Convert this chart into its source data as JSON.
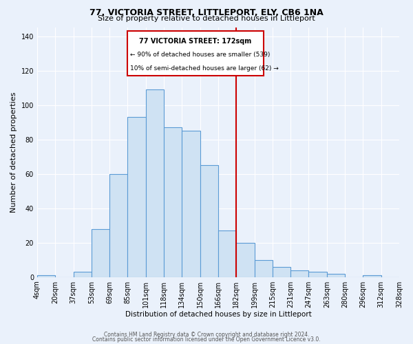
{
  "title": "77, VICTORIA STREET, LITTLEPORT, ELY, CB6 1NA",
  "subtitle": "Size of property relative to detached houses in Littleport",
  "xlabel": "Distribution of detached houses by size in Littleport",
  "ylabel": "Number of detached properties",
  "bin_labels": [
    "4sqm",
    "20sqm",
    "37sqm",
    "53sqm",
    "69sqm",
    "85sqm",
    "101sqm",
    "118sqm",
    "134sqm",
    "150sqm",
    "166sqm",
    "182sqm",
    "199sqm",
    "215sqm",
    "231sqm",
    "247sqm",
    "263sqm",
    "280sqm",
    "296sqm",
    "312sqm",
    "328sqm"
  ],
  "bar_heights": [
    1,
    0,
    3,
    28,
    60,
    93,
    109,
    87,
    85,
    65,
    27,
    20,
    10,
    6,
    4,
    3,
    2,
    0,
    1,
    0
  ],
  "bar_color": "#cfe2f3",
  "bar_edge_color": "#5b9bd5",
  "vline_label_idx": 10.5,
  "vline_color": "#cc0000",
  "annotation_title": "77 VICTORIA STREET: 172sqm",
  "annotation_line1": "← 90% of detached houses are smaller (539)",
  "annotation_line2": "10% of semi-detached houses are larger (62) →",
  "annotation_box_color": "#cc0000",
  "background_color": "#eaf1fb",
  "footer_line1": "Contains HM Land Registry data © Crown copyright and database right 2024.",
  "footer_line2": "Contains public sector information licensed under the Open Government Licence v3.0.",
  "ylim": [
    0,
    145
  ],
  "yticks": [
    0,
    20,
    40,
    60,
    80,
    100,
    120,
    140
  ]
}
